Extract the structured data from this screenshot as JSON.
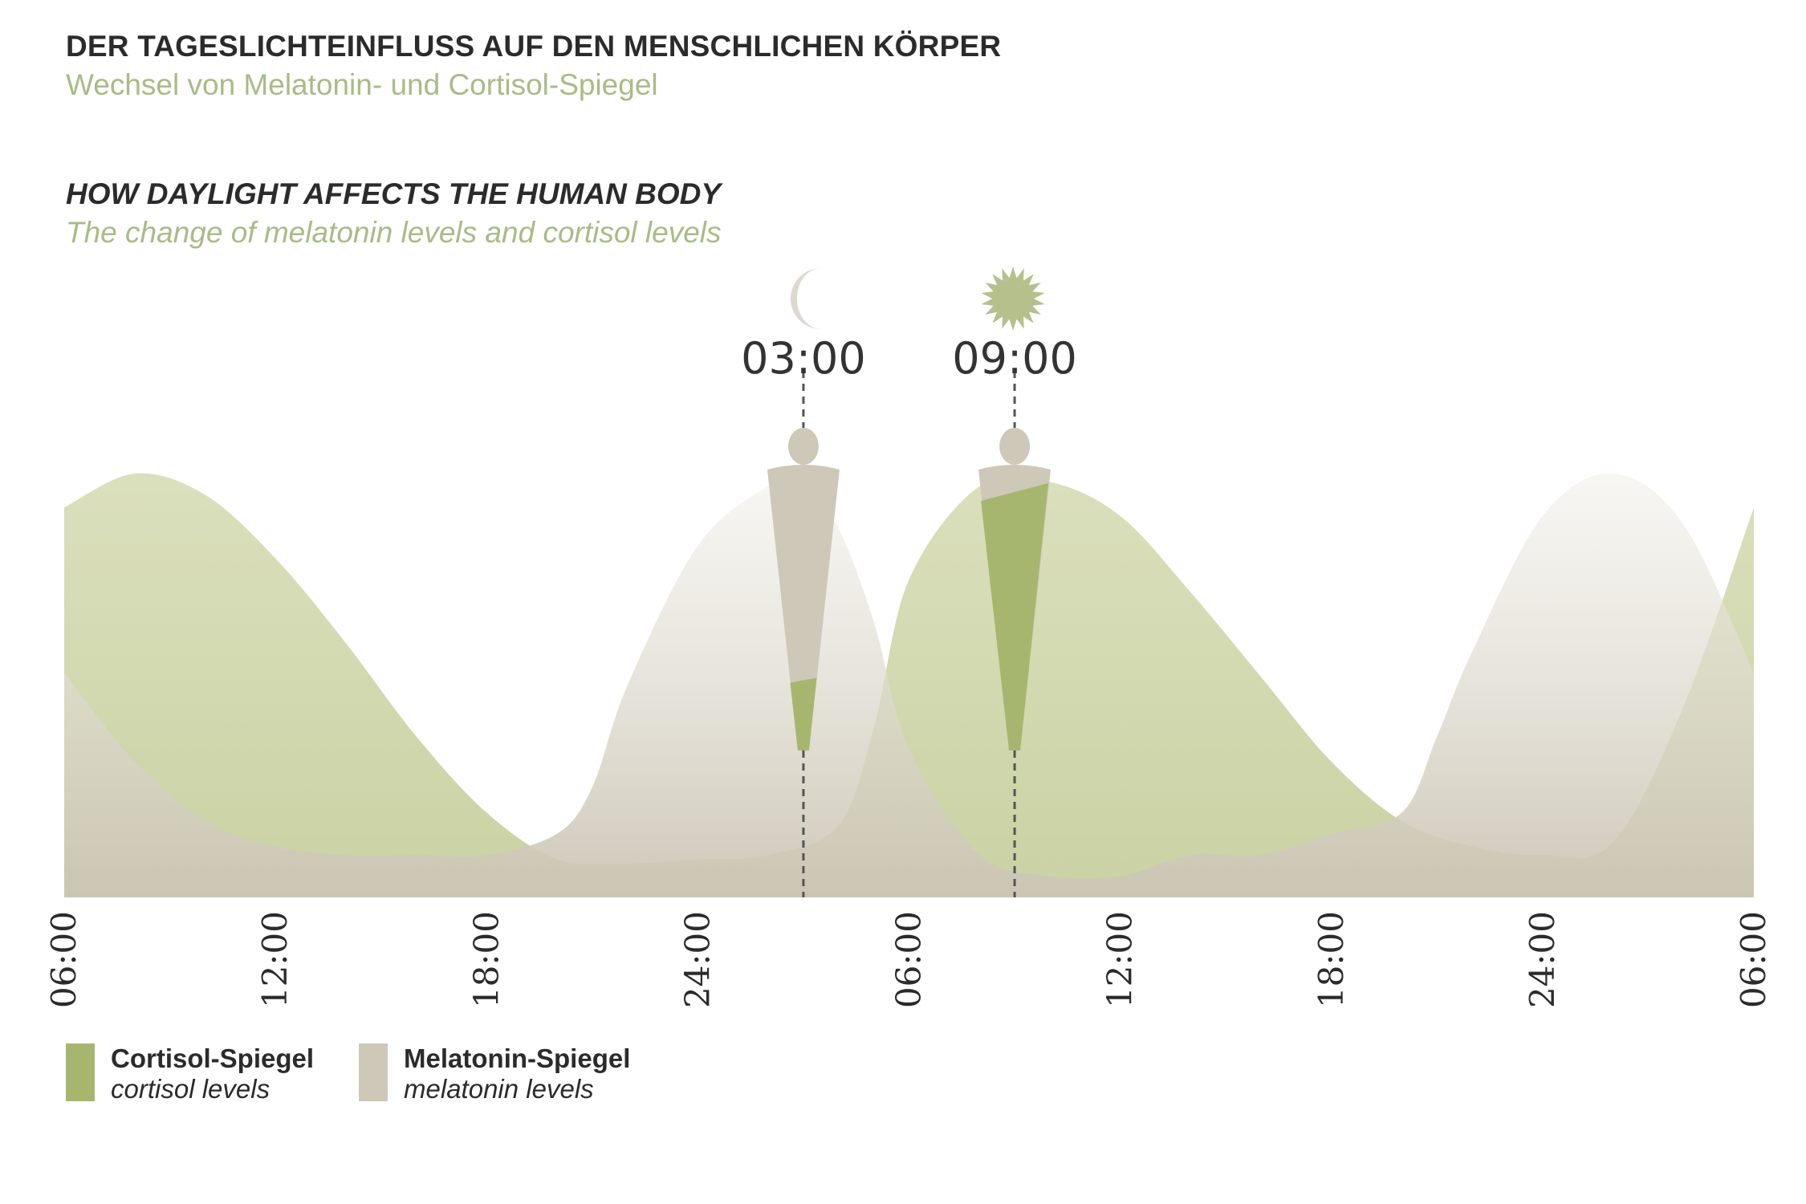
{
  "header": {
    "title_de": "DER TAGESLICHTEINFLUSS AUF DEN MENSCHLICHEN KÖRPER",
    "subtitle_de": "Wechsel von Melatonin- und Cortisol-Spiegel",
    "title_en": "HOW DAYLIGHT AFFECTS THE HUMAN BODY",
    "subtitle_en": "The change of melatonin levels and cortisol levels"
  },
  "colors": {
    "cortisol": "#a7b66e",
    "cortisol_light": "#d9deb9",
    "melatonin": "#cdc8b8",
    "melatonin_light": "#eeece5",
    "text": "#2b2b2b",
    "accent_text": "#a9bb86"
  },
  "markers": [
    {
      "label": "03:00",
      "hour": 21,
      "icon": "moon-icon",
      "cortisol_fraction": 0.25
    },
    {
      "label": "09:00",
      "hour": 27,
      "icon": "sun-icon",
      "cortisol_fraction": 0.92
    }
  ],
  "legend": [
    {
      "label": "Cortisol-Spiegel",
      "sublabel": "cortisol levels",
      "color": "#a7b66e"
    },
    {
      "label": "Melatonin-Spiegel",
      "sublabel": "melatonin levels",
      "color": "#cdc8b8"
    }
  ],
  "chart_data": {
    "type": "area",
    "title": "",
    "xlabel": "",
    "ylabel": "",
    "x_ticks": [
      "06:00",
      "12:00",
      "18:00",
      "24:00",
      "06:00",
      "12:00",
      "18:00",
      "24:00",
      "06:00"
    ],
    "xlim": [
      0,
      48
    ],
    "ylim": [
      0,
      1
    ],
    "grid": false,
    "legend_position": "bottom-left",
    "series": [
      {
        "name": "Cortisol-Spiegel",
        "x": [
          0,
          2,
          4,
          6,
          8,
          10,
          12,
          14,
          16,
          18,
          20,
          22,
          23,
          24,
          26,
          28,
          30,
          32,
          34,
          36,
          38,
          40,
          42,
          44,
          46,
          48
        ],
        "values": [
          0.92,
          1.0,
          0.95,
          0.8,
          0.6,
          0.38,
          0.2,
          0.09,
          0.08,
          0.09,
          0.1,
          0.17,
          0.4,
          0.75,
          0.97,
          0.98,
          0.9,
          0.72,
          0.52,
          0.32,
          0.18,
          0.12,
          0.1,
          0.13,
          0.45,
          0.92
        ]
      },
      {
        "name": "Melatonin-Spiegel",
        "x": [
          0,
          2,
          4,
          6,
          8,
          10,
          12,
          14,
          15,
          16,
          18,
          20,
          21,
          22,
          23,
          24,
          26,
          28,
          30,
          32,
          34,
          36,
          38,
          39,
          40,
          42,
          44,
          46,
          48
        ],
        "values": [
          0.53,
          0.32,
          0.18,
          0.12,
          0.1,
          0.1,
          0.1,
          0.15,
          0.26,
          0.5,
          0.83,
          0.97,
          0.98,
          0.87,
          0.65,
          0.35,
          0.1,
          0.05,
          0.05,
          0.1,
          0.1,
          0.15,
          0.2,
          0.38,
          0.58,
          0.9,
          1.0,
          0.88,
          0.53
        ]
      }
    ]
  }
}
